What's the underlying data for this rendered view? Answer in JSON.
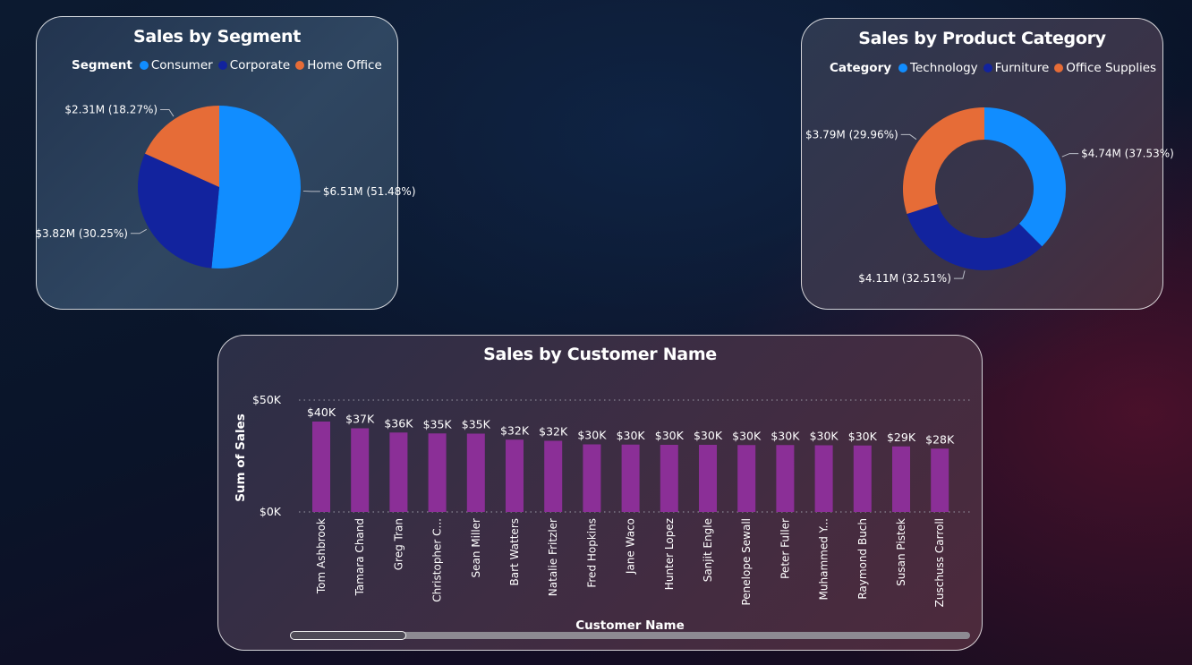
{
  "colors": {
    "blue": "#118DFF",
    "navy": "#12239E",
    "orange": "#E66C37",
    "purple": "#8B2F97"
  },
  "segment_card": {
    "title": "Sales by Segment",
    "legend_title": "Segment"
  },
  "category_card": {
    "title": "Sales by Product Category",
    "legend_title": "Category"
  },
  "customer_card": {
    "title": "Sales by Customer Name"
  },
  "chart_data": [
    {
      "type": "pie",
      "title": "Sales by Segment",
      "legend_title": "Segment",
      "legend_position": "top",
      "slices": [
        {
          "name": "Consumer",
          "value": 6.51,
          "label": "$6.51M (51.48%)",
          "percent": 51.48,
          "color": "#118DFF"
        },
        {
          "name": "Corporate",
          "value": 3.82,
          "label": "$3.82M (30.25%)",
          "percent": 30.25,
          "color": "#12239E"
        },
        {
          "name": "Home Office",
          "value": 2.31,
          "label": "$2.31M (18.27%)",
          "percent": 18.27,
          "color": "#E66C37"
        }
      ]
    },
    {
      "type": "pie",
      "variant": "donut",
      "title": "Sales by Product Category",
      "legend_title": "Category",
      "legend_position": "top",
      "slices": [
        {
          "name": "Technology",
          "value": 4.74,
          "label": "$4.74M (37.53%)",
          "percent": 37.53,
          "color": "#118DFF"
        },
        {
          "name": "Furniture",
          "value": 4.11,
          "label": "$4.11M (32.51%)",
          "percent": 32.51,
          "color": "#12239E"
        },
        {
          "name": "Office Supplies",
          "value": 3.79,
          "label": "$3.79M (29.96%)",
          "percent": 29.96,
          "color": "#E66C37"
        }
      ]
    },
    {
      "type": "bar",
      "title": "Sales by Customer Name",
      "xlabel": "Customer Name",
      "ylabel": "Sum of Sales",
      "ylim": [
        0,
        50000
      ],
      "yticks": [
        {
          "value": 0,
          "label": "$0K"
        },
        {
          "value": 50000,
          "label": "$50K"
        }
      ],
      "grid": true,
      "color": "#8B2F97",
      "categories": [
        "Tom Ashbrook",
        "Tamara Chand",
        "Greg Tran",
        "Christopher C...",
        "Sean Miller",
        "Bart Watters",
        "Natalie Fritzler",
        "Fred Hopkins",
        "Jane Waco",
        "Hunter Lopez",
        "Sanjit Engle",
        "Penelope Sewall",
        "Peter Fuller",
        "Muhammed Y...",
        "Raymond Buch",
        "Susan Pistek",
        "Zuschuss Carroll"
      ],
      "values": [
        40400,
        37400,
        35500,
        35100,
        35000,
        32300,
        31800,
        30200,
        30100,
        30000,
        30000,
        29900,
        29900,
        29800,
        29700,
        29300,
        28300
      ],
      "value_labels": [
        "$40K",
        "$37K",
        "$36K",
        "$35K",
        "$35K",
        "$32K",
        "$32K",
        "$30K",
        "$30K",
        "$30K",
        "$30K",
        "$30K",
        "$30K",
        "$30K",
        "$30K",
        "$29K",
        "$28K"
      ]
    }
  ]
}
